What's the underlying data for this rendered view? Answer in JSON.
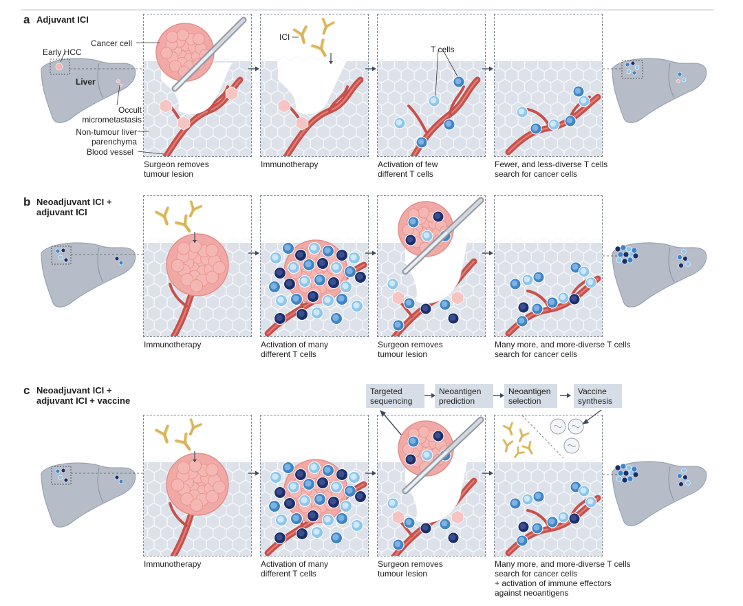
{
  "colors": {
    "tissue": "#dde2ea",
    "liver": "#b6bdc9",
    "tumour": "#f1a9a6",
    "vessel": "#c8504a",
    "tcell_light": "#8ec6ec",
    "tcell_mid": "#3f85c6",
    "tcell_dark": "#1c2f6b",
    "antibody": "#d9b45a",
    "arrow": "#3c4a60"
  },
  "icons": {
    "antibody": "antibody-icon",
    "scalpel": "scalpel-icon",
    "tcell": "t-cell-icon",
    "liver": "liver-icon",
    "vaccine": "vaccine-dish-icon"
  },
  "rows": {
    "a": {
      "letter": "a",
      "title": "Adjuvant ICI",
      "captions": [
        "Surgeon removes\ntumour lesion",
        "Immunotherapy",
        "Activation of few\ndifferent T cells",
        "Fewer, and less-diverse T cells\nsearch for cancer cells"
      ]
    },
    "b": {
      "letter": "b",
      "title": "Neoadjuvant ICI +\nadjuvant ICI",
      "captions": [
        "Immunotherapy",
        "Activation of many\ndifferent T cells",
        "Surgeon removes\ntumour lesion",
        "Many more, and more-diverse T cells\nsearch for cancer cells"
      ]
    },
    "c": {
      "letter": "c",
      "title": "Neoadjuvant ICI +\nadjuvant ICI + vaccine",
      "captions": [
        "Immunotherapy",
        "Activation of many\ndifferent T cells",
        "Surgeon removes\ntumour lesion",
        "Many more, and more-diverse T cells\nsearch for cancer cells\n+ activation of immune effectors\nagainst neoantigens"
      ],
      "pipeline": [
        "Targeted\nsequencing",
        "Neoantigen\nprediction",
        "Neoantigen\nselection",
        "Vaccine\nsynthesis"
      ]
    }
  },
  "labels": {
    "cancer_cell": "Cancer cell",
    "early_hcc": "Early HCC",
    "liver": "Liver",
    "occult": "Occult\nmicrometastasis",
    "non_tumour": "Non-tumour liver\nparenchyma",
    "blood_vessel": "Blood vessel",
    "ici": "ICI",
    "t_cells": "T cells"
  }
}
